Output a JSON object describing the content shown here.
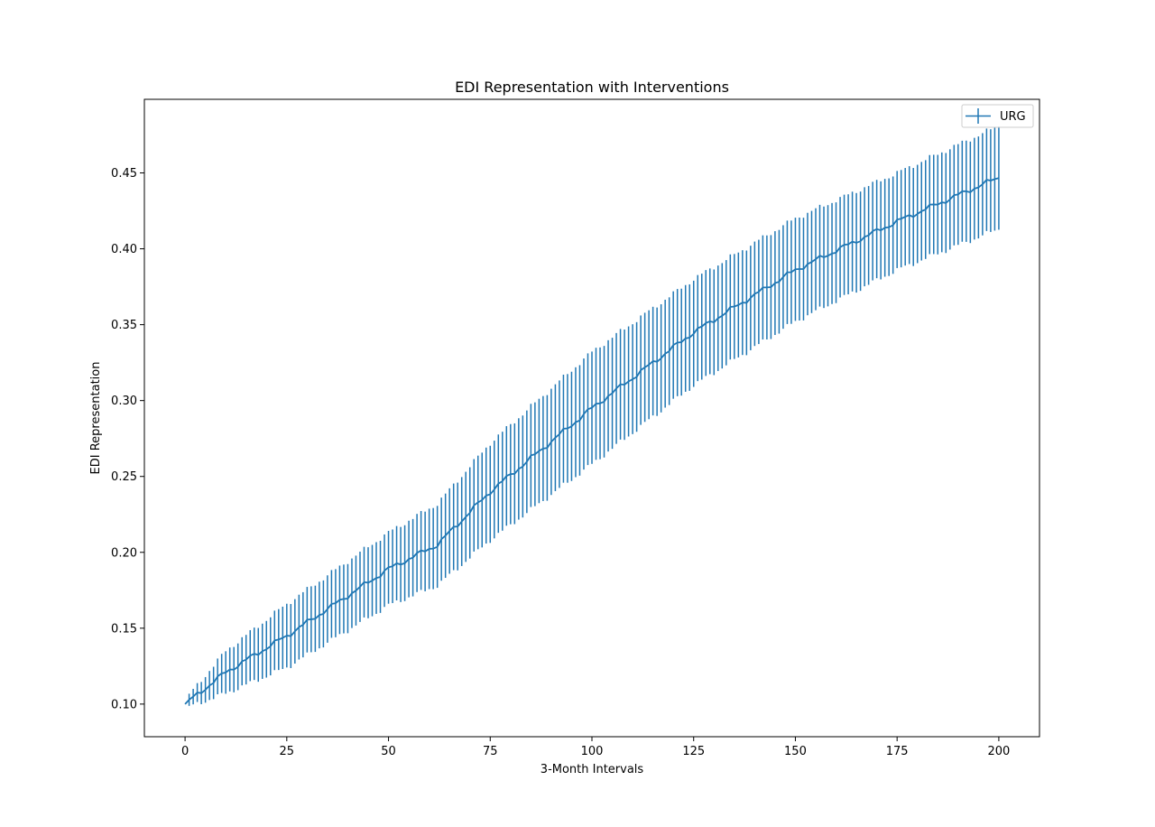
{
  "chart_data": {
    "type": "line",
    "title": "EDI Representation with Interventions",
    "xlabel": "3-Month Intervals",
    "ylabel": "EDI Representation",
    "xlim": [
      -10,
      210
    ],
    "ylim": [
      0.0785,
      0.4985
    ],
    "x_ticks": [
      0,
      25,
      50,
      75,
      100,
      125,
      150,
      175,
      200
    ],
    "x_tick_labels": [
      "0",
      "25",
      "50",
      "75",
      "100",
      "125",
      "150",
      "175",
      "200"
    ],
    "y_ticks": [
      0.1,
      0.15,
      0.2,
      0.25,
      0.3,
      0.35,
      0.4,
      0.45
    ],
    "y_tick_labels": [
      "0.10",
      "0.15",
      "0.20",
      "0.25",
      "0.30",
      "0.35",
      "0.40",
      "0.45"
    ],
    "grid": false,
    "legend": {
      "position": "top-right",
      "entries": [
        "URG"
      ]
    },
    "series": [
      {
        "name": "URG",
        "color": "#1f77b4",
        "error_bars": true,
        "x_start": 0,
        "x_end": 200,
        "x_step": 1,
        "mean_anchors": [
          [
            0,
            0.1
          ],
          [
            10,
            0.121
          ],
          [
            25,
            0.145
          ],
          [
            50,
            0.189
          ],
          [
            62,
            0.205
          ],
          [
            75,
            0.24
          ],
          [
            100,
            0.295
          ],
          [
            125,
            0.345
          ],
          [
            150,
            0.386
          ],
          [
            175,
            0.418
          ],
          [
            200,
            0.447
          ]
        ],
        "error_anchors": [
          [
            0,
            0.0
          ],
          [
            1,
            0.004
          ],
          [
            10,
            0.014
          ],
          [
            25,
            0.021
          ],
          [
            50,
            0.024
          ],
          [
            62,
            0.027
          ],
          [
            75,
            0.032
          ],
          [
            100,
            0.037
          ],
          [
            125,
            0.035
          ],
          [
            150,
            0.034
          ],
          [
            175,
            0.032
          ],
          [
            200,
            0.034
          ]
        ]
      }
    ]
  }
}
